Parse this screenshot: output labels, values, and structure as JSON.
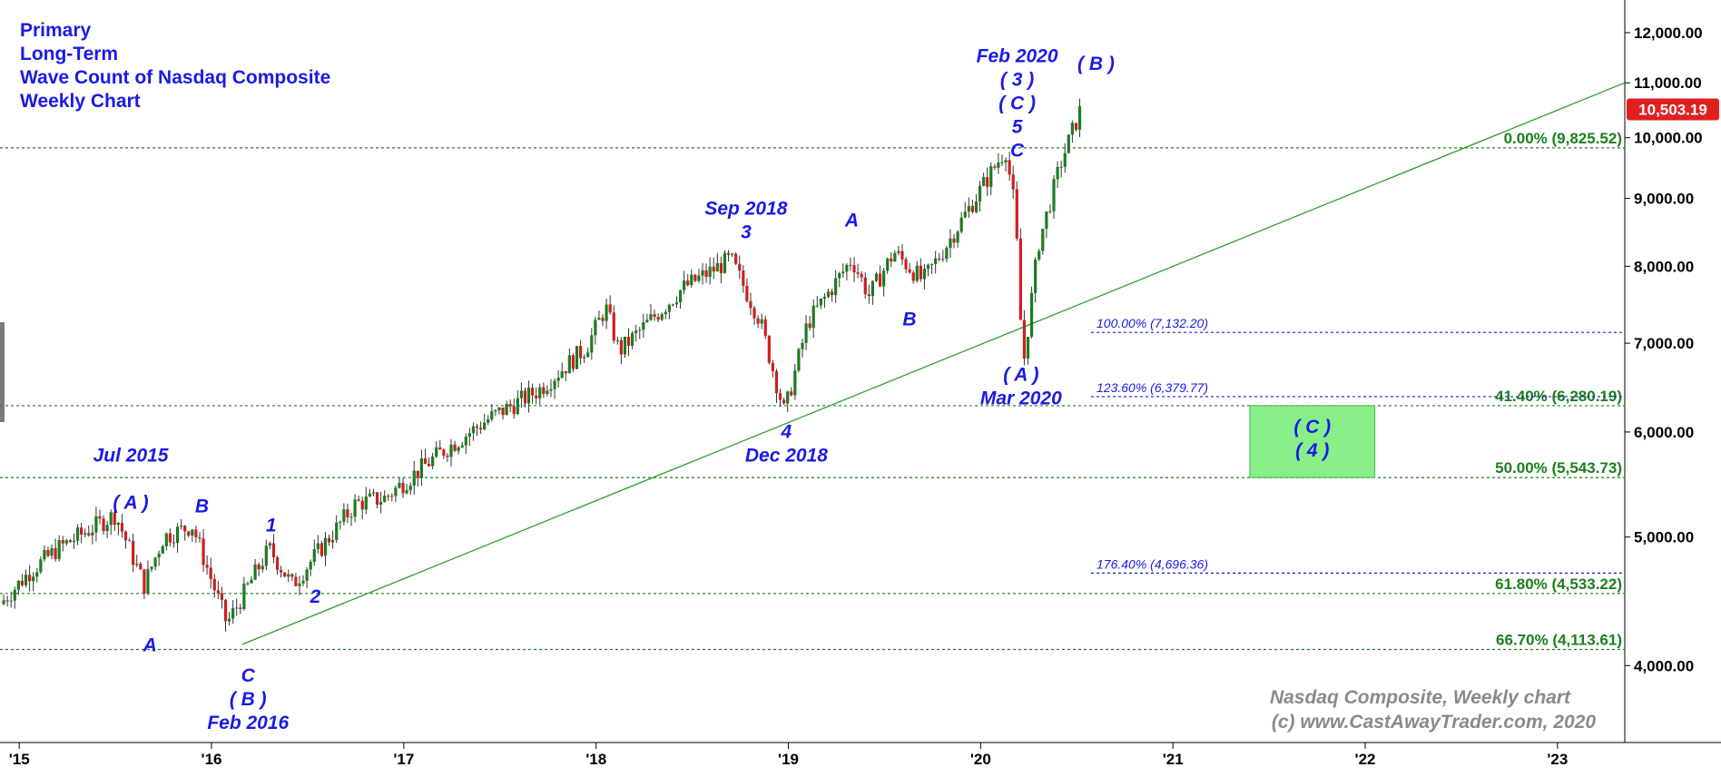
{
  "title_lines": [
    "Primary",
    "Long-Term",
    "Wave Count of Nasdaq Composite",
    "Weekly Chart"
  ],
  "watermark": [
    "Nasdaq Composite, Weekly chart",
    "(c) www.CastAwayTrader.com, 2020"
  ],
  "colors": {
    "wave_label": "#1a1ae6",
    "retrace": "#1b7f1b",
    "extension": "#1a1ae6",
    "trendline": "#2ea02e",
    "up_candle": "#1f7a1f",
    "down_candle": "#cc1f1f",
    "price_badge": "#e02020",
    "target_box": "#88ee88"
  },
  "chart_data": {
    "type": "candlestick",
    "scale": "log",
    "ylim": [
      3500,
      12700
    ],
    "y_ticks": [
      4000,
      5000,
      6000,
      7000,
      8000,
      9000,
      10000,
      11000,
      12000
    ],
    "y_tick_labels": [
      "4,000.00",
      "5,000.00",
      "6,000.00",
      "7,000.00",
      "8,000.00",
      "9,000.00",
      "10,000.00",
      "11,000.00",
      "12,000.00"
    ],
    "xlim": [
      2014.9,
      2023.35
    ],
    "x_ticks": [
      2015,
      2016,
      2017,
      2018,
      2019,
      2020,
      2021,
      2022,
      2023
    ],
    "x_tick_labels": [
      "'15",
      "'16",
      "'17",
      "'18",
      "'19",
      "'20",
      "'21",
      "'22",
      "'23"
    ],
    "last_price": "10,503.19",
    "price_path": [
      [
        2014.9,
        4450
      ],
      [
        2015.05,
        4700
      ],
      [
        2015.2,
        4900
      ],
      [
        2015.35,
        5050
      ],
      [
        2015.5,
        5200
      ],
      [
        2015.65,
        4600
      ],
      [
        2015.75,
        5000
      ],
      [
        2015.9,
        5100
      ],
      [
        2016.08,
        4300
      ],
      [
        2016.3,
        4900
      ],
      [
        2016.42,
        4600
      ],
      [
        2016.52,
        4800
      ],
      [
        2016.75,
        5300
      ],
      [
        2016.9,
        5350
      ],
      [
        2017.2,
        5800
      ],
      [
        2017.45,
        6150
      ],
      [
        2017.7,
        6450
      ],
      [
        2017.95,
        6950
      ],
      [
        2018.05,
        7450
      ],
      [
        2018.12,
        6900
      ],
      [
        2018.45,
        7700
      ],
      [
        2018.7,
        8100
      ],
      [
        2018.85,
        7300
      ],
      [
        2018.98,
        6200
      ],
      [
        2019.1,
        7250
      ],
      [
        2019.33,
        8100
      ],
      [
        2019.42,
        7600
      ],
      [
        2019.55,
        8200
      ],
      [
        2019.7,
        7800
      ],
      [
        2019.8,
        8200
      ],
      [
        2019.95,
        8900
      ],
      [
        2020.13,
        9800
      ],
      [
        2020.18,
        8800
      ],
      [
        2020.22,
        6700
      ],
      [
        2020.3,
        8300
      ],
      [
        2020.42,
        9600
      ],
      [
        2020.53,
        10600
      ]
    ],
    "horizontal_levels": [
      {
        "label": "0.00% (9,825.52)",
        "value": 9825.52,
        "kind": "retrace"
      },
      {
        "label": "41.40% (6,280.19)",
        "value": 6280.19,
        "kind": "retrace"
      },
      {
        "label": "50.00% (5,543.73)",
        "value": 5543.73,
        "kind": "retrace"
      },
      {
        "label": "61.80% (4,533.22)",
        "value": 4533.22,
        "kind": "retrace"
      },
      {
        "label": "66.70% (4,113.61)",
        "value": 4113.61,
        "kind": "retrace"
      },
      {
        "label": "100.00% (7,132.20)",
        "value": 7132.2,
        "kind": "extension"
      },
      {
        "label": "123.60% (6,379.77)",
        "value": 6379.77,
        "kind": "extension"
      },
      {
        "label": "176.40% (4,696.36)",
        "value": 4696.36,
        "kind": "extension"
      }
    ],
    "trendline": {
      "from": [
        2016.16,
        4150
      ],
      "to": [
        2023.35,
        11000
      ]
    },
    "target_zone": {
      "x": [
        2021.4,
        2022.05
      ],
      "y": [
        5543.73,
        6280.19
      ],
      "labels": [
        "( C )",
        "( 4 )"
      ]
    },
    "wave_labels": [
      {
        "x": 2015.58,
        "v": 5700,
        "lines": [
          "Jul 2015",
          "",
          "( A )"
        ]
      },
      {
        "x": 2015.68,
        "v": 4100,
        "lines": [
          "A"
        ]
      },
      {
        "x": 2015.95,
        "v": 5220,
        "lines": [
          "B"
        ]
      },
      {
        "x": 2016.19,
        "v": 3890,
        "lines": [
          "C",
          "( B )",
          "Feb 2016"
        ]
      },
      {
        "x": 2016.31,
        "v": 5050,
        "lines": [
          "1"
        ]
      },
      {
        "x": 2016.54,
        "v": 4460,
        "lines": [
          "2"
        ]
      },
      {
        "x": 2018.78,
        "v": 8750,
        "lines": [
          "Sep 2018",
          "3"
        ]
      },
      {
        "x": 2018.99,
        "v": 5940,
        "lines": [
          "4",
          "Dec 2018"
        ]
      },
      {
        "x": 2019.33,
        "v": 8570,
        "lines": [
          "A"
        ]
      },
      {
        "x": 2019.63,
        "v": 7220,
        "lines": [
          "B"
        ]
      },
      {
        "x": 2020.19,
        "v": 11400,
        "lines": [
          "Feb 2020",
          "( 3 )",
          "( C )",
          "5",
          "C"
        ]
      },
      {
        "x": 2020.6,
        "v": 11250,
        "lines": [
          "( B )"
        ]
      },
      {
        "x": 2020.21,
        "v": 6560,
        "lines": [
          "( A )",
          "Mar 2020"
        ]
      }
    ]
  }
}
